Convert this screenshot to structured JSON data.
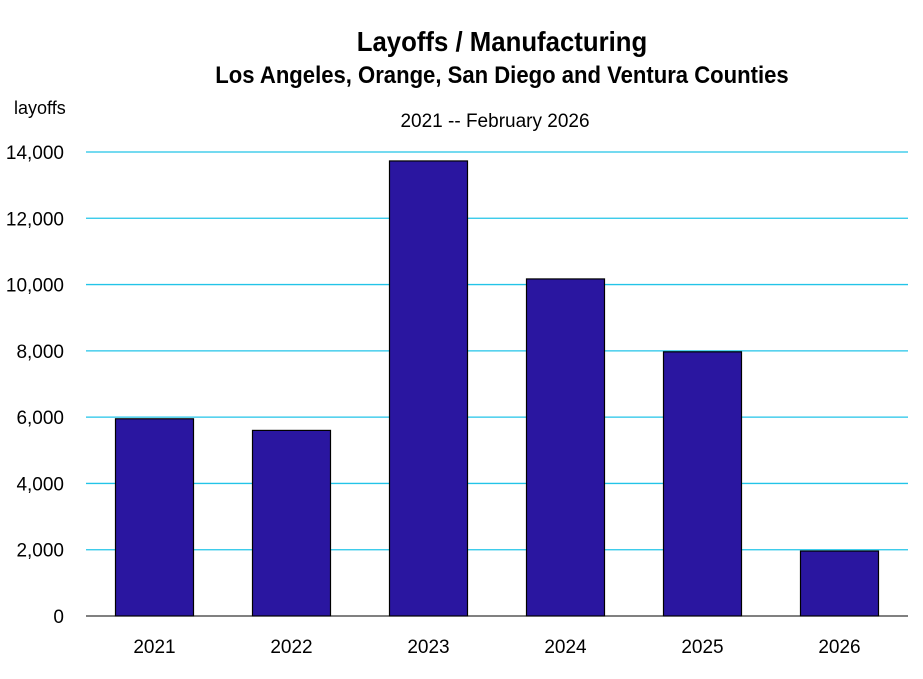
{
  "chart_data": {
    "type": "bar",
    "title": "Layoffs / Manufacturing",
    "subtitle": "Los Angeles, Orange, San Diego and Ventura Counties",
    "period": "2021 -- February 2026",
    "xlabel": "",
    "ylabel": "layoffs",
    "categories": [
      "2021",
      "2022",
      "2023",
      "2024",
      "2025",
      "2026"
    ],
    "values": [
      5950,
      5600,
      13730,
      10170,
      7970,
      1960
    ],
    "ylim": [
      0,
      14000
    ],
    "yticks": [
      0,
      2000,
      4000,
      6000,
      8000,
      10000,
      12000,
      14000
    ],
    "ytick_labels": [
      "0",
      "2,000",
      "4,000",
      "6,000",
      "8,000",
      "10,000",
      "12,000",
      "14,000"
    ],
    "grid": true,
    "colors": {
      "bar": "#2a16a0",
      "grid": "#22c4e8",
      "bar_edge": "#000000"
    }
  }
}
